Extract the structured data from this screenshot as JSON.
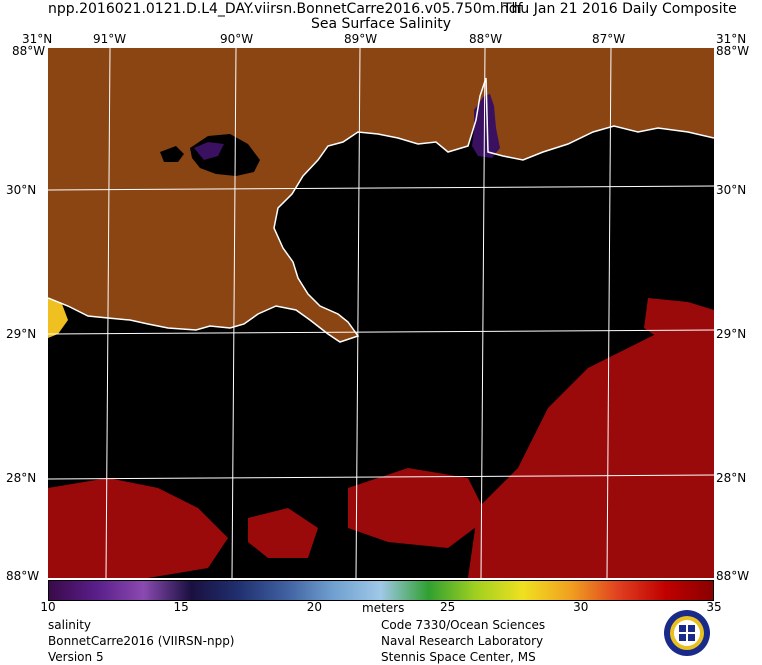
{
  "header": {
    "title_left": "npp.2016021.0121.D.L4_DAY.viirsn.BonnetCarre2016.v05.750m.hdf",
    "title_right": "Thu Jan 21 2016 Daily Composite",
    "subtitle": "Sea Surface Salinity"
  },
  "axes": {
    "top_labels": [
      "31°N",
      "91°W",
      "90°W",
      "89°W",
      "88°W",
      "87°W",
      "31°N"
    ],
    "corner_top_left": "88°W",
    "corner_top_right": "88°W",
    "corner_bottom_left": "88°W",
    "corner_bottom_right": "88°W",
    "bottom_left_under": "30°N",
    "bottom_right_under": "30°N",
    "lat_labels": [
      "30°N",
      "29°N",
      "28°N"
    ]
  },
  "colorbar": {
    "units": "meters",
    "ticks": [
      "10",
      "15",
      "20",
      "25",
      "30",
      "35"
    ],
    "range": [
      10,
      35
    ],
    "colors": [
      "#3a0a4a",
      "#5a1e8a",
      "#8a4ab0",
      "#1a1040",
      "#203070",
      "#4060a0",
      "#70a0d0",
      "#a0c8e8",
      "#30a030",
      "#a0d020",
      "#f0e020",
      "#f0a020",
      "#e04020",
      "#c00000",
      "#8a0000"
    ]
  },
  "colors": {
    "land": "#8a4513",
    "ocean": "#000000",
    "high_salinity": "#9a0a0a",
    "low_salinity": "#3a1060",
    "grid": "#ffffff",
    "coast": "#ffffff"
  },
  "footer": {
    "left": [
      "salinity",
      "BonnetCarre2016 (VIIRSN-npp)",
      "Version 5"
    ],
    "right": [
      "Code 7330/Ocean Sciences",
      "Naval Research Laboratory",
      "Stennis Space Center, MS"
    ]
  },
  "logo": {
    "name": "nrl-seal-icon"
  }
}
